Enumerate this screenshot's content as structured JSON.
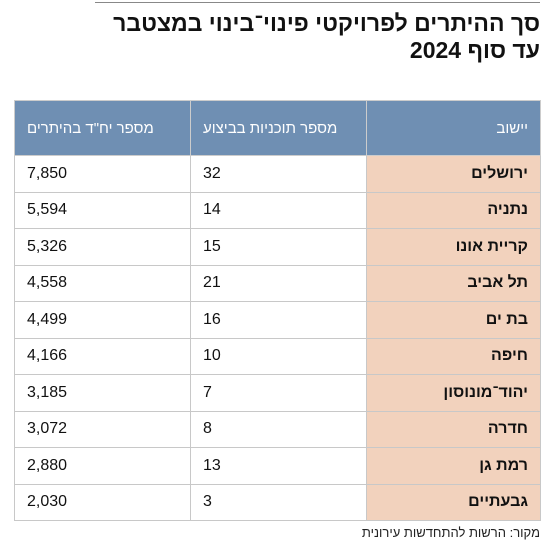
{
  "header": {
    "title": [
      "סך ההיתרים לפרויקטי פינוי־בינוי במצטבר",
      "עד סוף 2024"
    ]
  },
  "table": {
    "columns": [
      "יישוב",
      "מספר תוכניות בביצוע",
      "מספר יח\"ד בהיתרים"
    ],
    "rows": [
      [
        "ירושלים",
        "32",
        "7,850"
      ],
      [
        "נתניה",
        "14",
        "5,594"
      ],
      [
        "קריית אונו",
        "15",
        "5,326"
      ],
      [
        "תל אביב",
        "21",
        "4,558"
      ],
      [
        "בת ים",
        "16",
        "4,499"
      ],
      [
        "חיפה",
        "10",
        "4,166"
      ],
      [
        "יהוד־מונוסון",
        "7",
        "3,185"
      ],
      [
        "חדרה",
        "8",
        "3,072"
      ],
      [
        "רמת גן",
        "13",
        "2,880"
      ],
      [
        "גבעתיים",
        "3",
        "2,030"
      ]
    ]
  },
  "source": "מקור: הרשות להתחדשות עירונית"
}
